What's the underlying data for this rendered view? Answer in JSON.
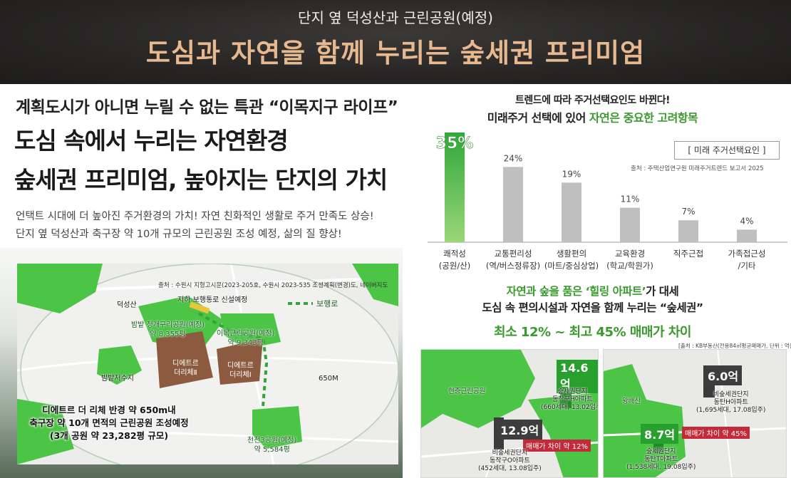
{
  "header": {
    "subtitle": "단지 옆 덕성산과 근린공원(예정)",
    "title": "도심과 자연을 함께 누리는 숲세권 프리미엄"
  },
  "left": {
    "line1": "계획도시가 아니면 누릴 수 없는 특관 “이목지구 라이프”",
    "line2": "도심 속에서 누리는 자연환경",
    "line3": "숲세권 프리미엄, 높아지는 단지의 가치",
    "desc1": "언택트 시대에 더 높아진 주거환경의 가치! 자연 친화적인 생활로 주거 만족도 상승!",
    "desc2": "단지 옆 덕성산과 축구장 약 10개 규모의 근린공원 조성 예정, 삶의 질 향상!"
  },
  "map": {
    "source": "출처 : 수원시 지형고시문(2023-205호, 수원시 2023-535 조성계획(변경)도, 네이버지도",
    "mountain": "덕성산",
    "underpass": "지하 보행통로 신설예정",
    "walkway": "보행로",
    "park1": [
      "밤밭 청개구리공원(예정)",
      "약 8,355평"
    ],
    "park2": [
      "이목근린공원(예정)",
      "약 9,343평"
    ],
    "reservoir": "밤밭저수지",
    "dietre2": [
      "디에트르",
      "더리체Ⅱ"
    ],
    "dietre1": [
      "디에트르",
      "더리체Ⅰ"
    ],
    "radius": "650M",
    "park3": [
      "천천3공원(예정)",
      "약 5,584평"
    ],
    "note": [
      "디에트르 더 리체 반경 약 650m내",
      "축구장 약 10개 면적의 근린공원 조성예정",
      "(3개 공원 약 23,282평 규모)"
    ]
  },
  "chart_title": {
    "line1": "트렌드에 따라 주거선택요인도 바뀐다!",
    "line2_prefix": "미래주거 선택에 있어 ",
    "line2_hl": "자연은 중요한 고려항목",
    "legend": "[ 미래 주거선택요인 ]",
    "source": "출처 : 주택산업연구원 미래주거트렌드 보고서 2025"
  },
  "chart_data": {
    "type": "bar",
    "categories": [
      [
        "쾌적성",
        "(공원/산)"
      ],
      [
        "교통편리성",
        "(역/버스정류장)"
      ],
      [
        "생활편의",
        "(마트/중심상업)"
      ],
      [
        "교육환경",
        "(학교/학원가)"
      ],
      [
        "직주근접",
        ""
      ],
      [
        "가족접근성",
        "/기타"
      ]
    ],
    "values": [
      35,
      24,
      19,
      11,
      7,
      4
    ],
    "value_labels": [
      "35%",
      "24%",
      "19%",
      "11%",
      "7%",
      "4%"
    ],
    "colors": {
      "highlight": "#35b336",
      "normal": "#bfbfbf"
    },
    "ylim": [
      0,
      35
    ]
  },
  "bottom": {
    "l1_hl": "자연과 숲을 품은 ‘힐링 아파트’",
    "l1_rest": "가 대세",
    "l2": "도심 속 편의시설과 자연을 함께 누리는 “숲세권”",
    "l3": "최소 12% ~ 최고 45% 매매가 차이",
    "source": "[출처 : KB부동산(전용84㎡평균매매가, 단위 : 억원)]"
  },
  "map_left": {
    "park": "현충근린공원",
    "forest_price": "14.6억",
    "forest_apt": [
      "숲세권단지",
      "동작구H아파트",
      "(660세대, 13.02입주)"
    ],
    "other_price": "12.9억",
    "other_apt": [
      "비숲세권단지",
      "동작구O아파트",
      "(452세대, 13.08입주)"
    ],
    "diff": "매매가 차이 약 12%"
  },
  "map_right": {
    "park": "왕배산",
    "other_price": "6.0억",
    "other_apt": [
      "비숲세권단지",
      "동탄H아파트",
      "(1,695세대, 17.08입주)"
    ],
    "forest_price": "8.7억",
    "forest_apt": [
      "숲세권단지",
      "동탄T아파트",
      "(1,538세대, 19.08입주)"
    ],
    "diff": "매매가 차이 약 45%"
  }
}
